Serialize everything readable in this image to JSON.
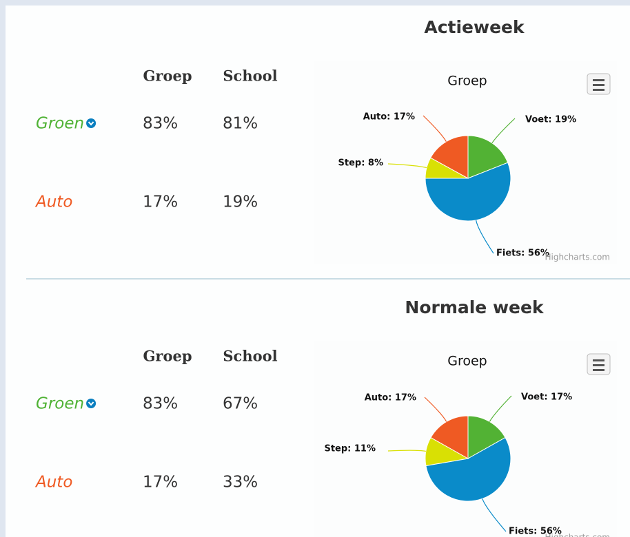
{
  "sections": [
    {
      "title": "Actieweek",
      "table": {
        "header": [
          "Groep",
          "School"
        ],
        "rows": [
          {
            "label": "Groen",
            "values": [
              "83%",
              "81%"
            ]
          },
          {
            "label": "Auto",
            "values": [
              "17%",
              "19%"
            ]
          }
        ]
      }
    },
    {
      "title": "Normale week",
      "table": {
        "header": [
          "Groep",
          "School"
        ],
        "rows": [
          {
            "label": "Groen",
            "values": [
              "83%",
              "67%"
            ]
          },
          {
            "label": "Auto",
            "values": [
              "17%",
              "33%"
            ]
          }
        ]
      }
    }
  ],
  "chart_data": [
    {
      "type": "pie",
      "title": "Groep",
      "values": [
        19,
        56,
        8,
        17
      ],
      "value_labels": [
        "Voet: 19%",
        "Fiets: 56%",
        "Step: 8%",
        "Auto: 17%"
      ],
      "colors": [
        "#52b234",
        "#0a8bc9",
        "#d9e004",
        "#ef5a23"
      ],
      "credit": "Highcharts.com"
    },
    {
      "type": "pie",
      "title": "Groep",
      "values": [
        17,
        56,
        11,
        17
      ],
      "value_labels": [
        "Voet: 17%",
        "Fiets: 56%",
        "Step: 11%",
        "Auto: 17%"
      ],
      "colors": [
        "#52b234",
        "#0a8bc9",
        "#d9e004",
        "#ef5a23"
      ],
      "credit": "Highcharts.com"
    }
  ]
}
